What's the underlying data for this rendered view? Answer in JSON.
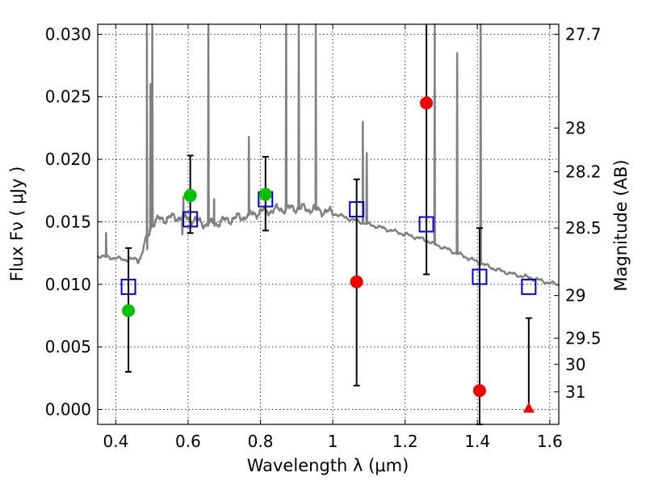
{
  "chart_data": {
    "type": "scatter",
    "xlabel": "Wavelength  λ (μm)",
    "ylabel": "Flux  Fν  ( μJy )",
    "ylabel_right": "Magnitude (AB)",
    "xlim": [
      0.35,
      1.625
    ],
    "ylim": [
      -0.0012,
      0.0308
    ],
    "grid": true,
    "x_ticks": [
      0.4,
      0.6,
      0.8,
      1.0,
      1.2,
      1.4,
      1.6
    ],
    "x_tick_labels": [
      "0.4",
      "0.6",
      "0.8",
      "1",
      "1.2",
      "1.4",
      "1.6"
    ],
    "y_ticks": [
      0.0,
      0.005,
      0.01,
      0.015,
      0.02,
      0.025,
      0.03
    ],
    "y_tick_labels": [
      "0.000",
      "0.005",
      "0.010",
      "0.015",
      "0.020",
      "0.025",
      "0.030"
    ],
    "right_ticks": [
      {
        "flux": 0.03,
        "label": "27.7"
      },
      {
        "flux": 0.0225,
        "label": "28"
      },
      {
        "flux": 0.019,
        "label": "28.2"
      },
      {
        "flux": 0.0145,
        "label": "28.5"
      },
      {
        "flux": 0.0091,
        "label": "29"
      },
      {
        "flux": 0.0057,
        "label": "29.5"
      },
      {
        "flux": 0.0036,
        "label": "30"
      },
      {
        "flux": 0.0014,
        "label": "31"
      }
    ],
    "colors": {
      "model": "#808080",
      "green": "#00c000",
      "red": "#ee0000",
      "blue": "#0000cc",
      "errorbar": "#000000"
    },
    "series": [
      {
        "marker": "square-open-blue",
        "points": [
          {
            "x": 0.435,
            "y": 0.0098
          },
          {
            "x": 0.606,
            "y": 0.0152
          },
          {
            "x": 0.814,
            "y": 0.0168
          },
          {
            "x": 1.066,
            "y": 0.016
          },
          {
            "x": 1.259,
            "y": 0.0148
          },
          {
            "x": 1.406,
            "y": 0.0106
          },
          {
            "x": 1.542,
            "y": 0.0098
          }
        ]
      },
      {
        "marker": "circle-green",
        "points": [
          {
            "x": 0.435,
            "y": 0.0079
          },
          {
            "x": 0.606,
            "y": 0.0171
          },
          {
            "x": 0.814,
            "y": 0.0172
          }
        ]
      },
      {
        "marker": "circle-red",
        "points": [
          {
            "x": 1.066,
            "y": 0.0102
          },
          {
            "x": 1.259,
            "y": 0.0245
          },
          {
            "x": 1.406,
            "y": 0.0015
          }
        ]
      },
      {
        "marker": "triangle-red",
        "points": [
          {
            "x": 1.542,
            "y": 0.0
          }
        ]
      }
    ],
    "error_bars": [
      {
        "x": 0.435,
        "low": 0.003,
        "high": 0.0129
      },
      {
        "x": 0.606,
        "low": 0.0141,
        "high": 0.0203
      },
      {
        "x": 0.814,
        "low": 0.0143,
        "high": 0.0202
      },
      {
        "x": 1.066,
        "low": 0.0019,
        "high": 0.0184
      },
      {
        "x": 1.259,
        "low": 0.0108,
        "high": 0.031
      },
      {
        "x": 1.406,
        "low": -0.0012,
        "high": 0.0145
      },
      {
        "x": 1.542,
        "low": 0.0,
        "high": 0.0073
      }
    ],
    "model_continuum": [
      [
        0.35,
        0.0123
      ],
      [
        0.37,
        0.0122
      ],
      [
        0.4,
        0.0121
      ],
      [
        0.42,
        0.012
      ],
      [
        0.45,
        0.012
      ],
      [
        0.47,
        0.0122
      ],
      [
        0.48,
        0.0132
      ],
      [
        0.5,
        0.0148
      ],
      [
        0.52,
        0.0152
      ],
      [
        0.55,
        0.0153
      ],
      [
        0.58,
        0.0154
      ],
      [
        0.6,
        0.0153
      ],
      [
        0.62,
        0.0151
      ],
      [
        0.65,
        0.0148
      ],
      [
        0.68,
        0.0149
      ],
      [
        0.7,
        0.0151
      ],
      [
        0.75,
        0.0154
      ],
      [
        0.8,
        0.0158
      ],
      [
        0.85,
        0.016
      ],
      [
        0.9,
        0.0161
      ],
      [
        0.95,
        0.016
      ],
      [
        1.0,
        0.0157
      ],
      [
        1.05,
        0.0152
      ],
      [
        1.1,
        0.0148
      ],
      [
        1.15,
        0.0144
      ],
      [
        1.2,
        0.014
      ],
      [
        1.25,
        0.0136
      ],
      [
        1.3,
        0.013
      ],
      [
        1.35,
        0.0124
      ],
      [
        1.4,
        0.0118
      ],
      [
        1.45,
        0.0112
      ],
      [
        1.5,
        0.0108
      ],
      [
        1.55,
        0.0105
      ],
      [
        1.6,
        0.0101
      ],
      [
        1.625,
        0.01
      ]
    ],
    "model_lines": [
      {
        "x": 0.373,
        "peak": 0.0141
      },
      {
        "x": 0.486,
        "peak": 0.0308
      },
      {
        "x": 0.496,
        "peak": 0.026
      },
      {
        "x": 0.501,
        "peak": 0.0308
      },
      {
        "x": 0.587,
        "peak": 0.017
      },
      {
        "x": 0.656,
        "peak": 0.0308
      },
      {
        "x": 0.672,
        "peak": 0.0168
      },
      {
        "x": 0.768,
        "peak": 0.0218
      },
      {
        "x": 0.871,
        "peak": 0.0308
      },
      {
        "x": 0.906,
        "peak": 0.0308
      },
      {
        "x": 0.953,
        "peak": 0.0308
      },
      {
        "x": 1.083,
        "peak": 0.023
      },
      {
        "x": 1.094,
        "peak": 0.0205
      },
      {
        "x": 1.282,
        "peak": 0.0308
      },
      {
        "x": 1.344,
        "peak": 0.0285
      },
      {
        "x": 1.409,
        "peak": 0.0308
      }
    ],
    "model_dips": [
      {
        "x": 0.487,
        "floor": 0.0128
      },
      {
        "x": 0.584,
        "floor": 0.014
      }
    ]
  }
}
